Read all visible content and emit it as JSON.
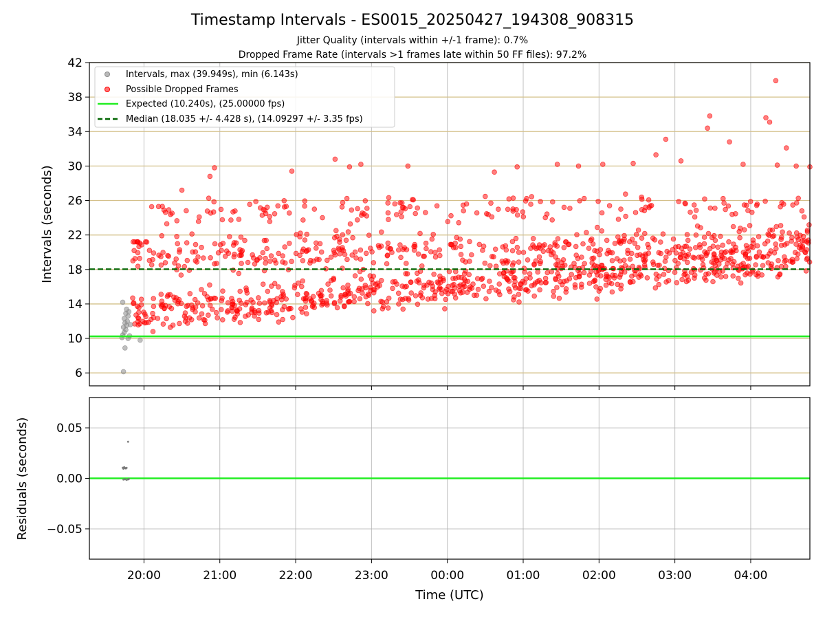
{
  "chart_data": [
    {
      "type": "scatter",
      "title": "Timestamp Intervals - ES0015_20250427_194308_908315",
      "subtitle_lines": [
        "Jitter Quality (intervals within +/-1 frame): 0.7%",
        "Dropped Frame Rate (intervals >1 frames late within 50 FF files): 97.2%"
      ],
      "ylabel": "Intervals (seconds)",
      "xlim_hours": [
        19.28,
        28.78
      ],
      "ylim": [
        4.5,
        42
      ],
      "yticks": [
        6,
        10,
        14,
        18,
        22,
        26,
        30,
        34,
        38,
        42
      ],
      "hgrid_color": "#d4c08a",
      "vgrid": true,
      "legend_position": "upper-left",
      "legend": [
        {
          "key": "intervals",
          "label": "Intervals, max (39.949s), min (6.143s)"
        },
        {
          "key": "dropped",
          "label": "Possible Dropped Frames"
        },
        {
          "key": "expected",
          "label": "Expected (10.240s), (25.00000 fps)"
        },
        {
          "key": "median",
          "label": "Median (18.035 +/- 4.428 s), (14.09297 +/- 3.35 fps)"
        }
      ],
      "expected_value": 10.24,
      "median_value": 18.035,
      "colors": {
        "intervals": "#8c8c8c",
        "dropped": "#ff0000",
        "expected": "#22ee22",
        "median": "#006400"
      },
      "series": [
        {
          "key": "intervals",
          "points": [
            [
              19.73,
              6.14
            ],
            [
              19.75,
              8.9
            ],
            [
              19.71,
              10.1
            ],
            [
              19.72,
              10.4
            ],
            [
              19.74,
              10.7
            ],
            [
              19.76,
              11.0
            ],
            [
              19.73,
              11.3
            ],
            [
              19.77,
              11.5
            ],
            [
              19.75,
              11.8
            ],
            [
              19.78,
              12.0
            ],
            [
              19.74,
              12.3
            ],
            [
              19.79,
              12.6
            ],
            [
              19.76,
              12.9
            ],
            [
              19.8,
              13.1
            ],
            [
              19.77,
              13.4
            ],
            [
              19.72,
              14.2
            ],
            [
              19.81,
              10.3
            ],
            [
              19.82,
              11.6
            ],
            [
              19.79,
              10.0
            ],
            [
              19.95,
              9.8
            ]
          ]
        },
        {
          "key": "dropped",
          "generator": {
            "seed": 20250427,
            "count": 1290,
            "t_start": 19.84,
            "t_end": 28.78
          },
          "outliers": [
            [
              20.5,
              27.2
            ],
            [
              20.87,
              28.8
            ],
            [
              20.93,
              29.8
            ],
            [
              21.95,
              29.4
            ],
            [
              22.52,
              30.8
            ],
            [
              22.71,
              29.9
            ],
            [
              22.86,
              30.2
            ],
            [
              23.48,
              30.0
            ],
            [
              24.62,
              29.3
            ],
            [
              24.92,
              29.9
            ],
            [
              25.45,
              30.2
            ],
            [
              25.73,
              30.0
            ],
            [
              26.05,
              30.2
            ],
            [
              26.75,
              31.3
            ],
            [
              26.88,
              33.1
            ],
            [
              27.08,
              30.6
            ],
            [
              27.43,
              34.4
            ],
            [
              27.46,
              35.8
            ],
            [
              27.72,
              32.8
            ],
            [
              27.9,
              30.2
            ],
            [
              28.2,
              35.6
            ],
            [
              28.25,
              35.1
            ],
            [
              28.33,
              39.9
            ],
            [
              28.47,
              32.1
            ],
            [
              28.6,
              30.0
            ],
            [
              28.78,
              29.9
            ],
            [
              28.35,
              30.1
            ],
            [
              26.45,
              30.3
            ]
          ]
        }
      ]
    },
    {
      "type": "scatter",
      "ylabel": "Residuals (seconds)",
      "xlabel": "Time (UTC)",
      "ylim": [
        -0.08,
        0.08
      ],
      "yticks": [
        0.05,
        0.0,
        -0.05
      ],
      "ytick_labels": [
        "0.05",
        "0.00",
        "−0.05"
      ],
      "xticks_hours": [
        20,
        21,
        22,
        23,
        24,
        25,
        26,
        27,
        28
      ],
      "xtick_labels": [
        "20:00",
        "21:00",
        "22:00",
        "23:00",
        "00:00",
        "01:00",
        "02:00",
        "03:00",
        "04:00"
      ],
      "zero_line_color": "#22ee22",
      "points": [
        [
          19.72,
          0.0105
        ],
        [
          19.73,
          0.0095
        ],
        [
          19.74,
          0.011
        ],
        [
          19.75,
          0.0102
        ],
        [
          19.76,
          0.0098
        ],
        [
          19.77,
          0.0104
        ],
        [
          19.79,
          0.0363
        ],
        [
          19.73,
          -0.0012
        ],
        [
          19.75,
          -0.0008
        ],
        [
          19.77,
          -0.0015
        ],
        [
          19.79,
          -0.001
        ],
        [
          19.8,
          -0.0006
        ]
      ]
    }
  ]
}
